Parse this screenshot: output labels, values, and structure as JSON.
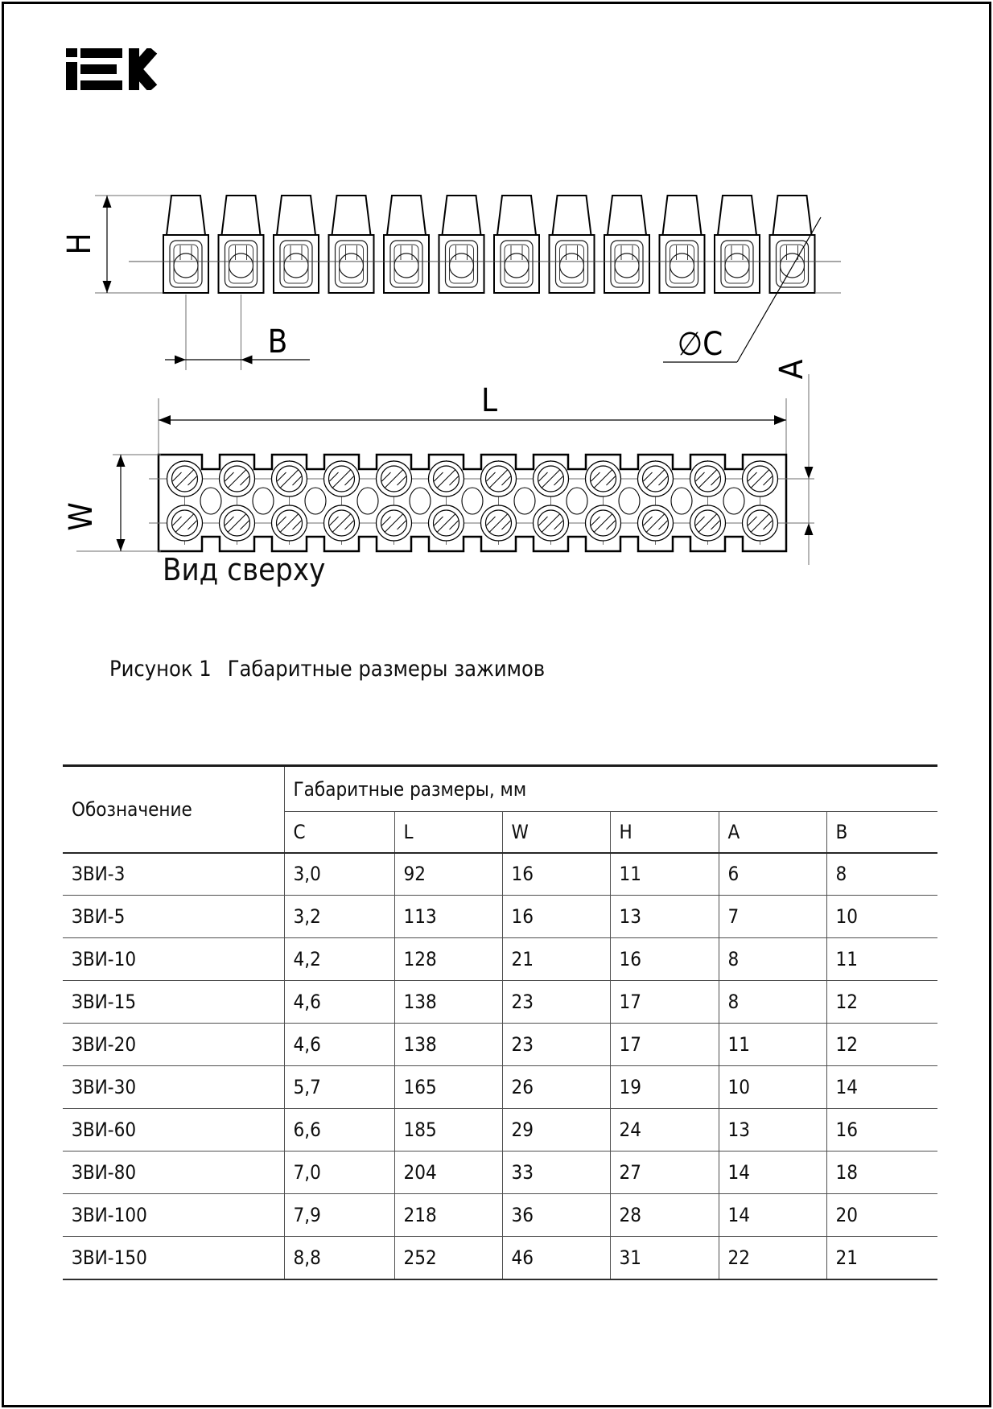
{
  "brand": "iEK",
  "figure": {
    "terminals": 12,
    "top_view_label": "Вид сверху",
    "caption_label": "Рисунок 1",
    "caption_text": "Габаритные размеры зажимов",
    "dims": {
      "h": "H",
      "b": "B",
      "c": "∅C",
      "l": "L",
      "w": "W",
      "a": "A"
    }
  },
  "table": {
    "col1_header": "Обозначение",
    "group_header": "Габаритные размеры, мм",
    "sub_headers": [
      "C",
      "L",
      "W",
      "H",
      "A",
      "B"
    ],
    "rows": [
      {
        "name": "ЗВИ-3",
        "values": [
          "3,0",
          "92",
          "16",
          "11",
          "6",
          "8"
        ]
      },
      {
        "name": "ЗВИ-5",
        "values": [
          "3,2",
          "113",
          "16",
          "13",
          "7",
          "10"
        ]
      },
      {
        "name": "ЗВИ-10",
        "values": [
          "4,2",
          "128",
          "21",
          "16",
          "8",
          "11"
        ]
      },
      {
        "name": "ЗВИ-15",
        "values": [
          "4,6",
          "138",
          "23",
          "17",
          "8",
          "12"
        ]
      },
      {
        "name": "ЗВИ-20",
        "values": [
          "4,6",
          "138",
          "23",
          "17",
          "11",
          "12"
        ]
      },
      {
        "name": "ЗВИ-30",
        "values": [
          "5,7",
          "165",
          "26",
          "19",
          "10",
          "14"
        ]
      },
      {
        "name": "ЗВИ-60",
        "values": [
          "6,6",
          "185",
          "29",
          "24",
          "13",
          "16"
        ]
      },
      {
        "name": "ЗВИ-80",
        "values": [
          "7,0",
          "204",
          "33",
          "27",
          "14",
          "18"
        ]
      },
      {
        "name": "ЗВИ-100",
        "values": [
          "7,9",
          "218",
          "36",
          "28",
          "14",
          "20"
        ]
      },
      {
        "name": "ЗВИ-150",
        "values": [
          "8,8",
          "252",
          "46",
          "31",
          "22",
          "21"
        ]
      }
    ]
  }
}
